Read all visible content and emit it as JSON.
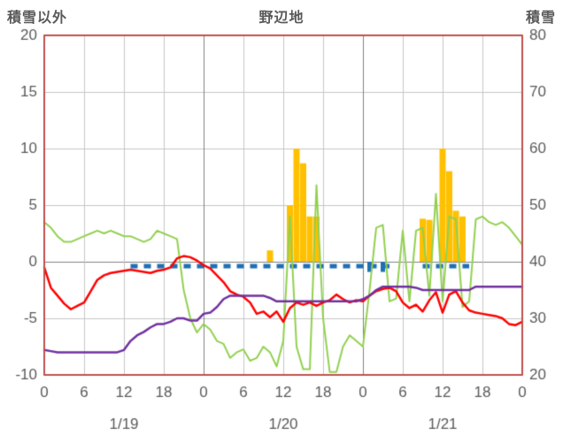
{
  "header": {
    "left_axis_title": "積雪以外",
    "chart_title": "野辺地",
    "right_axis_title": "積雪"
  },
  "chart_data": {
    "type": "bar+line combo (hourly weather observations, 3 days)",
    "title": "野辺地",
    "left_axis": {
      "title": "積雪以外",
      "max": 20,
      "min": -10,
      "ticks": [
        20,
        15,
        10,
        5,
        0,
        -5,
        -10
      ]
    },
    "right_axis": {
      "title": "積雪",
      "max": 80,
      "min": 20,
      "ticks": [
        80,
        70,
        60,
        50,
        40,
        30,
        20
      ]
    },
    "x_axis": {
      "hours_total": 72,
      "hour_tick_step": 6,
      "hour_tick_labels": [
        "0",
        "6",
        "12",
        "18",
        "0",
        "6",
        "12",
        "18",
        "0",
        "6",
        "12",
        "18",
        "0"
      ],
      "date_labels": [
        "1/19",
        "1/20",
        "1/21"
      ],
      "date_label_hours": [
        12,
        36,
        60
      ],
      "day_boundary_hours": [
        24,
        48
      ]
    },
    "grid": {
      "horizontal": true,
      "vertical": true
    },
    "legend": "none",
    "series": {
      "red_line": {
        "name": "red-line",
        "axis": "left",
        "values": [
          -0.5,
          -2.3,
          -3.0,
          -3.7,
          -4.2,
          -3.9,
          -3.6,
          -2.6,
          -1.6,
          -1.2,
          -1.0,
          -0.9,
          -0.8,
          -0.7,
          -0.8,
          -0.9,
          -1.0,
          -0.8,
          -0.7,
          -0.5,
          0.3,
          0.5,
          0.4,
          0.1,
          -0.3,
          -0.6,
          -1.2,
          -1.8,
          -2.6,
          -2.9,
          -3.1,
          -3.6,
          -4.6,
          -4.4,
          -4.9,
          -4.4,
          -5.3,
          -4.1,
          -3.6,
          -3.8,
          -3.6,
          -3.9,
          -3.6,
          -3.4,
          -2.9,
          -3.3,
          -3.6,
          -3.4,
          -3.5,
          -3.0,
          -2.6,
          -2.4,
          -2.3,
          -2.6,
          -3.6,
          -4.1,
          -3.8,
          -4.4,
          -3.4,
          -2.7,
          -4.5,
          -2.9,
          -2.6,
          -3.6,
          -4.3,
          -4.5,
          -4.6,
          -4.7,
          -4.8,
          -5.0,
          -5.5,
          -5.6,
          -5.3
        ]
      },
      "purple_line": {
        "name": "purple-line",
        "axis": "left",
        "values": [
          -7.8,
          -7.9,
          -8.0,
          -8.0,
          -8.0,
          -8.0,
          -8.0,
          -8.0,
          -8.0,
          -8.0,
          -8.0,
          -8.0,
          -7.8,
          -7.0,
          -6.5,
          -6.2,
          -5.8,
          -5.5,
          -5.5,
          -5.3,
          -5.0,
          -5.0,
          -5.2,
          -5.2,
          -4.6,
          -4.5,
          -4.0,
          -3.3,
          -3.0,
          -3.0,
          -3.0,
          -3.0,
          -3.0,
          -3.0,
          -3.2,
          -3.5,
          -3.5,
          -3.5,
          -3.5,
          -3.5,
          -3.5,
          -3.5,
          -3.5,
          -3.5,
          -3.5,
          -3.5,
          -3.5,
          -3.5,
          -3.3,
          -3.0,
          -2.5,
          -2.2,
          -2.2,
          -2.2,
          -2.2,
          -2.2,
          -2.3,
          -2.5,
          -2.5,
          -2.5,
          -2.5,
          -2.5,
          -2.5,
          -2.5,
          -2.5,
          -2.2,
          -2.2,
          -2.2,
          -2.2,
          -2.2,
          -2.2,
          -2.2,
          -2.2
        ]
      },
      "green_line": {
        "name": "green-line-snow-depth",
        "axis": "right",
        "values": [
          47,
          46,
          44.5,
          43.5,
          43.5,
          44,
          44.5,
          45,
          45.5,
          45,
          45.5,
          45,
          44.5,
          44.5,
          44,
          43.5,
          44,
          45.5,
          45,
          44.5,
          44,
          35,
          30,
          27.5,
          29,
          28,
          26,
          25.5,
          23,
          24,
          24.5,
          22.5,
          23,
          25,
          24,
          21.5,
          26,
          48,
          25,
          21,
          21,
          53.5,
          30,
          20.5,
          20.5,
          25,
          27,
          26,
          25,
          35,
          46,
          46.5,
          33,
          33.5,
          45.5,
          33,
          45.5,
          46,
          34,
          52,
          33,
          48,
          47.5,
          32,
          33,
          47.5,
          48,
          47,
          46.5,
          47,
          46,
          44.5,
          43
        ]
      },
      "orange_bars": {
        "name": "orange-bars",
        "axis": "left",
        "values": [
          0,
          0,
          0,
          0,
          0,
          0,
          0,
          0,
          0,
          0,
          0,
          0,
          0,
          0,
          0,
          0,
          0,
          0,
          0,
          0,
          0,
          0,
          0,
          0,
          0,
          0,
          0,
          0,
          0,
          0,
          0,
          0,
          0,
          0,
          1,
          0,
          0,
          5,
          10,
          8.7,
          4,
          4,
          0,
          0,
          0,
          0,
          0,
          0,
          0,
          0,
          0,
          0,
          0,
          0,
          0,
          0,
          0,
          3.8,
          3.7,
          0,
          10,
          8,
          4.5,
          4,
          0,
          0,
          0,
          0,
          0,
          0,
          0,
          0,
          0
        ]
      },
      "blue_marks": {
        "name": "blue-dashed-marks",
        "axis": "left",
        "dash_value": -0.4,
        "dash_segments_hours": [
          [
            13,
            52
          ],
          [
            57,
            64
          ]
        ],
        "tick_hours": [
          49,
          51
        ],
        "tick_value": -0.9
      }
    },
    "colors": {
      "frame": "#C0504D",
      "grid": "#C6C6C6",
      "day_line": "#808080",
      "zero_line": "#808080",
      "red": "#FF0000",
      "purple": "#7030A0",
      "green": "#92D050",
      "orange": "#FFC000",
      "blue": "#1F6FB5",
      "text": "#595959",
      "background": "#FFFFFF"
    }
  }
}
